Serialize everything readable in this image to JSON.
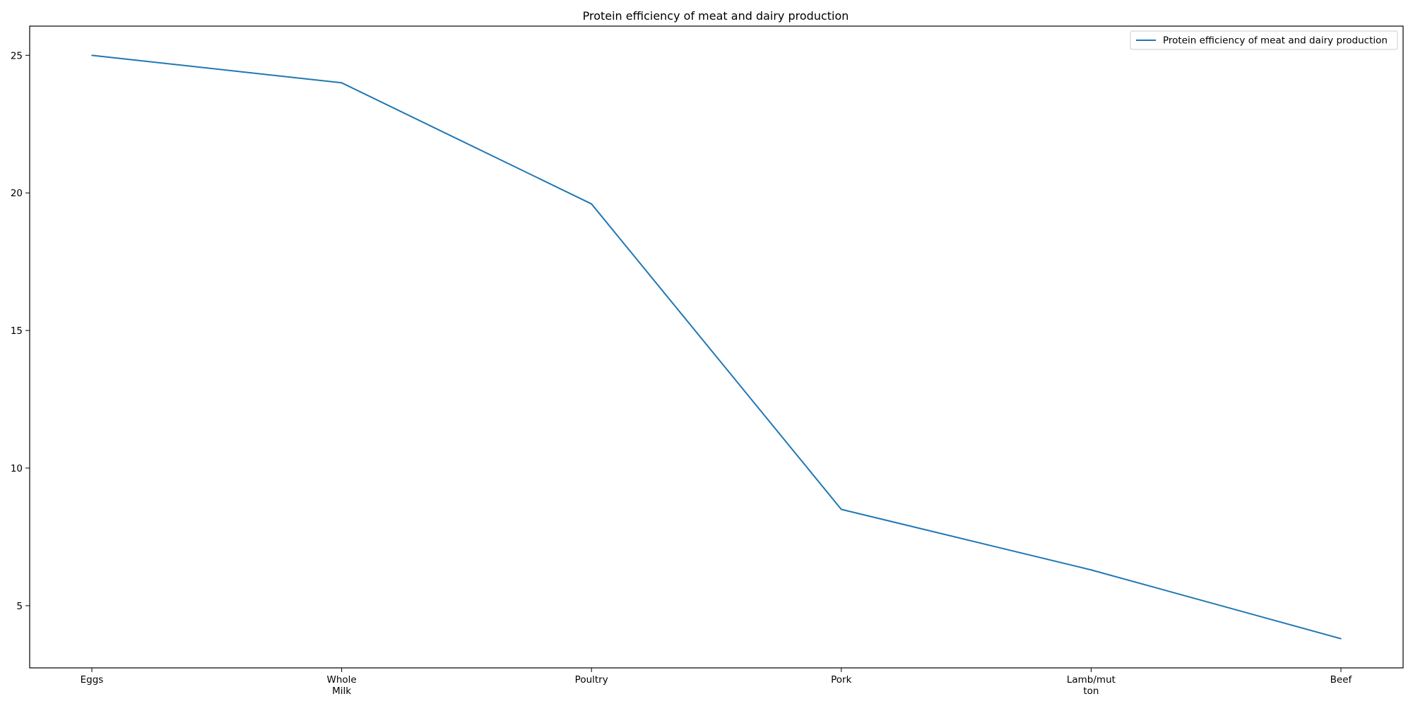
{
  "chart_data": {
    "type": "line",
    "title": "Protein efficiency of meat and dairy production",
    "xlabel": "",
    "ylabel": "",
    "categories": [
      [
        "Eggs"
      ],
      [
        "Whole",
        "Milk"
      ],
      [
        "Poultry"
      ],
      [
        "Pork"
      ],
      [
        "Lamb/mut",
        "ton"
      ],
      [
        "Beef"
      ]
    ],
    "series": [
      {
        "name": "Protein efficiency of meat and dairy production",
        "values": [
          25.0,
          24.0,
          19.6,
          8.5,
          6.3,
          3.8
        ],
        "color": "#1f77b4"
      }
    ],
    "yticks": [
      5,
      10,
      15,
      20,
      25
    ],
    "ylim": [
      2.74,
      26.06
    ],
    "grid": false,
    "legend": "top-right"
  }
}
